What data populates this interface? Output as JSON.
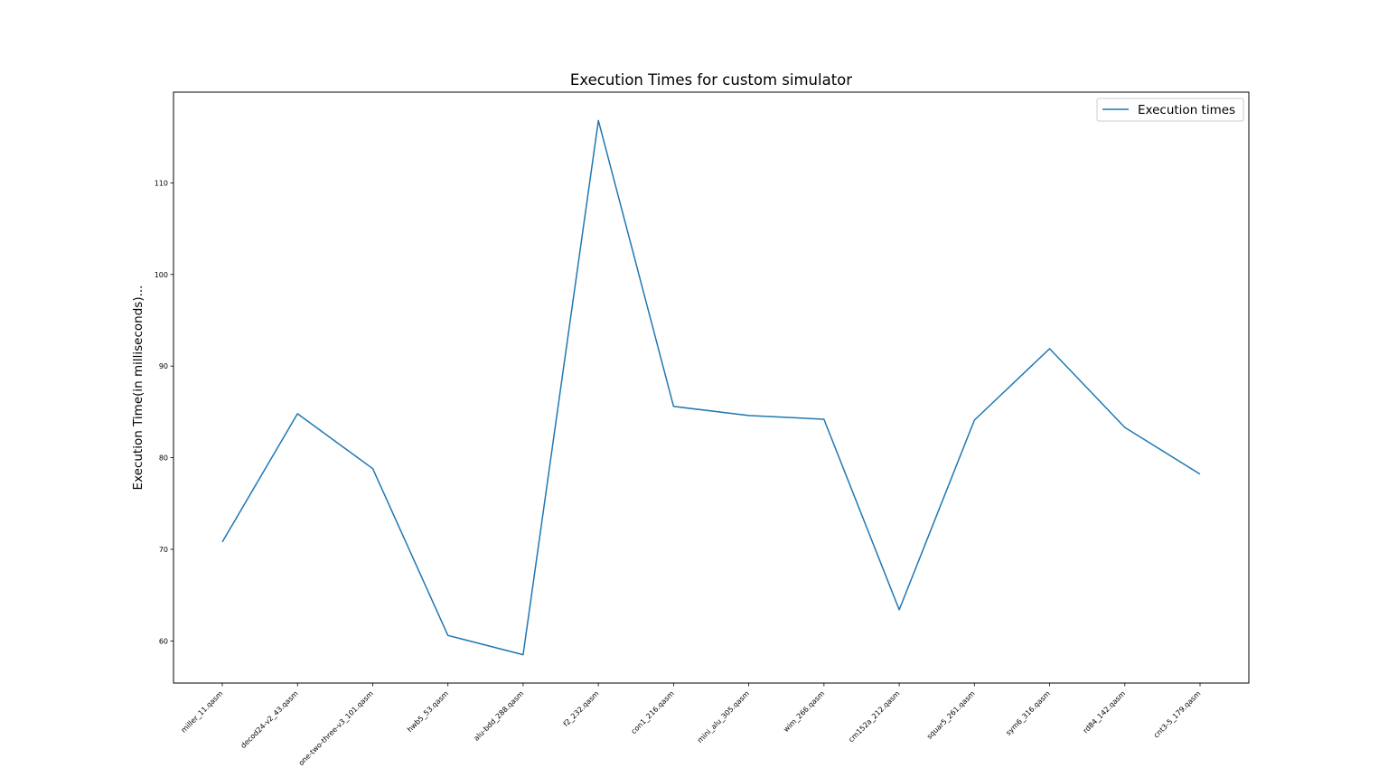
{
  "chart_data": {
    "type": "line",
    "title": "Execution Times for custom simulator",
    "xlabel": "",
    "ylabel": "Execution Time(in milliseconds)...",
    "categories": [
      "miller_11.qasm",
      "decod24-v2_43.qasm",
      "one-two-three-v3_101.qasm",
      "hwb5_53.qasm",
      "alu-bdd_288.qasm",
      "f2_232.qasm",
      "con1_216.qasm",
      "mini_alu_305.qasm",
      "wim_266.qasm",
      "cm152a_212.qasm",
      "squar5_261.qasm",
      "sym6_316.qasm",
      "rd84_142.qasm",
      "cnt3-5_179.qasm"
    ],
    "series": [
      {
        "name": "Execution times",
        "color": "#1f77b4",
        "values": [
          70.8,
          84.8,
          78.8,
          60.6,
          58.5,
          116.8,
          85.6,
          84.6,
          84.2,
          63.4,
          84.1,
          91.9,
          83.3,
          78.2
        ]
      }
    ],
    "yticks": [
      60,
      70,
      80,
      90,
      100,
      110
    ],
    "ylim": [
      55.4,
      119.9
    ],
    "grid": false,
    "legend_position": "top-right"
  }
}
